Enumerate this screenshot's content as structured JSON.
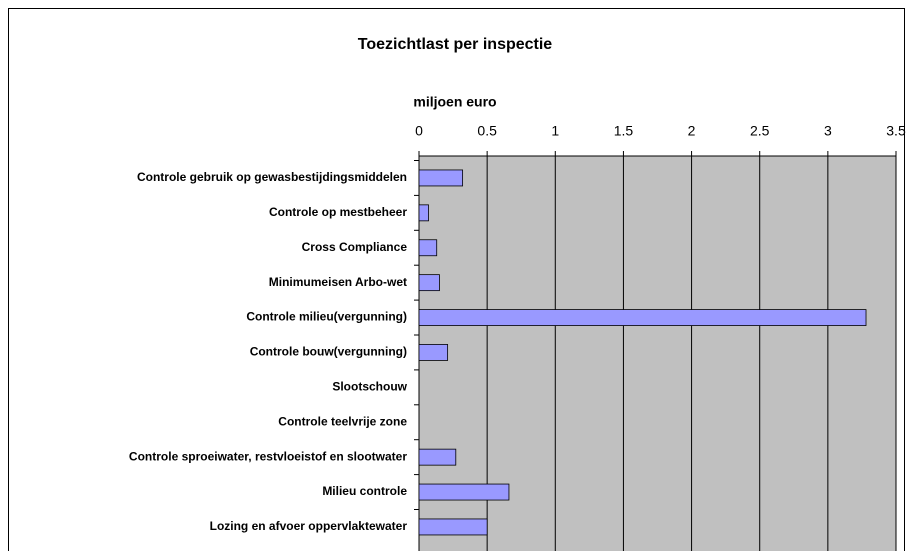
{
  "chart_data": {
    "type": "bar",
    "orientation": "horizontal",
    "title": "Toezichtlast per inspectie",
    "x_axis_label": "miljoen euro",
    "categories": [
      "Controle gebruik op gewasbestijdingsmiddelen",
      "Controle op mestbeheer",
      "Cross Compliance",
      "Minimumeisen Arbo-wet",
      "Controle milieu(vergunning)",
      "Controle bouw(vergunning)",
      "Slootschouw",
      "Controle teelvrije zone",
      "Controle sproeiwater, restvloeistof en slootwater",
      "Milieu controle",
      "Lozing en afvoer oppervlaktewater"
    ],
    "values": [
      0.32,
      0.07,
      0.13,
      0.15,
      3.28,
      0.21,
      0,
      0,
      0.27,
      0.66,
      0.5
    ],
    "color": "#9999ff",
    "plot_background": "#c0c0c0",
    "xlim": [
      0,
      3.5
    ],
    "xticks": [
      0,
      0.5,
      1,
      1.5,
      2,
      2.5,
      3,
      3.5
    ],
    "grid": true
  }
}
